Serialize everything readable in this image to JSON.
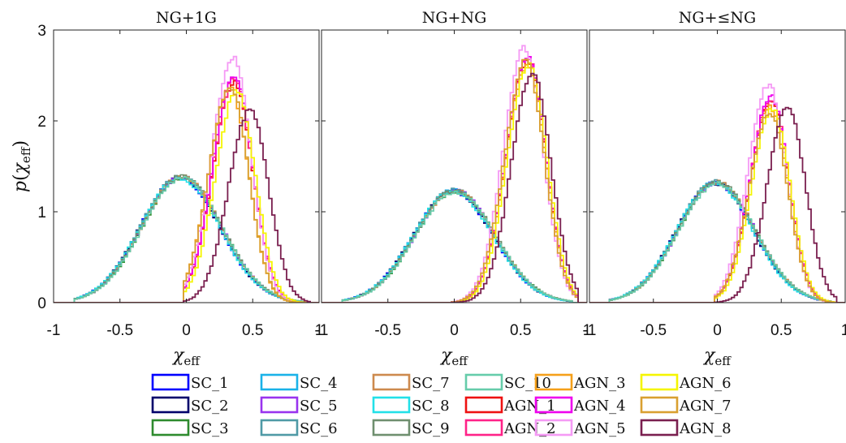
{
  "chart_data": {
    "type": "histogram-step",
    "ylabel": "p(χeff)",
    "panels": [
      {
        "title": "NG+1G",
        "xlabel": "χeff"
      },
      {
        "title": "NG+NG",
        "xlabel": "χeff"
      },
      {
        "title": "NG+≤NG",
        "xlabel": "χeff"
      }
    ],
    "xlim": [
      -1,
      1
    ],
    "ylim": [
      0,
      3
    ],
    "xticks": [
      "-1",
      "-0.5",
      "0",
      "0.5",
      "1"
    ],
    "yticks": [
      "0",
      "1",
      "2",
      "3"
    ],
    "legend_position": "bottom",
    "series": [
      {
        "name": "SC_1",
        "label": "SC_1",
        "color": "#0000ff",
        "group": "SC"
      },
      {
        "name": "SC_2",
        "label": "SC_2",
        "color": "#00006b",
        "group": "SC"
      },
      {
        "name": "SC_3",
        "label": "SC_3",
        "color": "#2e8b2e",
        "group": "SC"
      },
      {
        "name": "SC_4",
        "label": "SC_4",
        "color": "#1ab2e8",
        "group": "SC"
      },
      {
        "name": "SC_5",
        "label": "SC_5",
        "color": "#9933ee",
        "group": "SC"
      },
      {
        "name": "SC_6",
        "label": "SC_6",
        "color": "#4f9aa6",
        "group": "SC"
      },
      {
        "name": "SC_7",
        "label": "SC_7",
        "color": "#cd8a4e",
        "group": "SC"
      },
      {
        "name": "SC_8",
        "label": "SC_8",
        "color": "#22e0e8",
        "group": "SC"
      },
      {
        "name": "SC_9",
        "label": "SC_9",
        "color": "#6f8f6f",
        "group": "SC"
      },
      {
        "name": "SC_10",
        "label": "SC_10",
        "color": "#66ccaa",
        "group": "SC"
      },
      {
        "name": "AGN_1",
        "label": "AGN_1",
        "color": "#ee1111",
        "group": "AGN"
      },
      {
        "name": "AGN_2",
        "label": "AGN_2",
        "color": "#ff2288",
        "group": "AGN"
      },
      {
        "name": "AGN_3",
        "label": "AGN_3",
        "color": "#f5a01a",
        "group": "AGN"
      },
      {
        "name": "AGN_4",
        "label": "AGN_4",
        "color": "#ee00ee",
        "group": "AGN"
      },
      {
        "name": "AGN_5",
        "label": "AGN_5",
        "color": "#f59af5",
        "group": "AGN"
      },
      {
        "name": "AGN_6",
        "label": "AGN_6",
        "color": "#f5f500",
        "group": "AGN"
      },
      {
        "name": "AGN_7",
        "label": "AGN_7",
        "color": "#d9a030",
        "group": "AGN"
      },
      {
        "name": "AGN_8",
        "label": "AGN_8",
        "color": "#7a1f4f",
        "group": "AGN"
      }
    ],
    "distributions": [
      {
        "SC": {
          "mean": -0.04,
          "peak": 1.38
        },
        "AGN": {
          "AGN_1": {
            "mean": 0.36,
            "peak": 2.42
          },
          "AGN_2": {
            "mean": 0.36,
            "peak": 2.45
          },
          "AGN_3": {
            "mean": 0.33,
            "peak": 2.36
          },
          "AGN_4": {
            "mean": 0.36,
            "peak": 2.5
          },
          "AGN_5": {
            "mean": 0.35,
            "peak": 2.7
          },
          "AGN_6": {
            "mean": 0.38,
            "peak": 2.33
          },
          "AGN_7": {
            "mean": 0.33,
            "peak": 2.38
          },
          "AGN_8": {
            "mean": 0.48,
            "peak": 2.12
          }
        }
      },
      {
        "SC": {
          "mean": 0.0,
          "peak": 1.23
        },
        "AGN": {
          "AGN_1": {
            "mean": 0.55,
            "peak": 2.66
          },
          "AGN_2": {
            "mean": 0.55,
            "peak": 2.7
          },
          "AGN_3": {
            "mean": 0.55,
            "peak": 2.62
          },
          "AGN_4": {
            "mean": 0.55,
            "peak": 2.7
          },
          "AGN_5": {
            "mean": 0.53,
            "peak": 2.8
          },
          "AGN_6": {
            "mean": 0.56,
            "peak": 2.62
          },
          "AGN_7": {
            "mean": 0.54,
            "peak": 2.66
          },
          "AGN_8": {
            "mean": 0.59,
            "peak": 2.52
          }
        }
      },
      {
        "SC": {
          "mean": -0.01,
          "peak": 1.32
        },
        "AGN": {
          "AGN_1": {
            "mean": 0.42,
            "peak": 2.22
          },
          "AGN_2": {
            "mean": 0.42,
            "peak": 2.25
          },
          "AGN_3": {
            "mean": 0.41,
            "peak": 2.16
          },
          "AGN_4": {
            "mean": 0.42,
            "peak": 2.28
          },
          "AGN_5": {
            "mean": 0.4,
            "peak": 2.4
          },
          "AGN_6": {
            "mean": 0.43,
            "peak": 2.14
          },
          "AGN_7": {
            "mean": 0.41,
            "peak": 2.1
          },
          "AGN_8": {
            "mean": 0.55,
            "peak": 2.15
          }
        }
      }
    ]
  }
}
